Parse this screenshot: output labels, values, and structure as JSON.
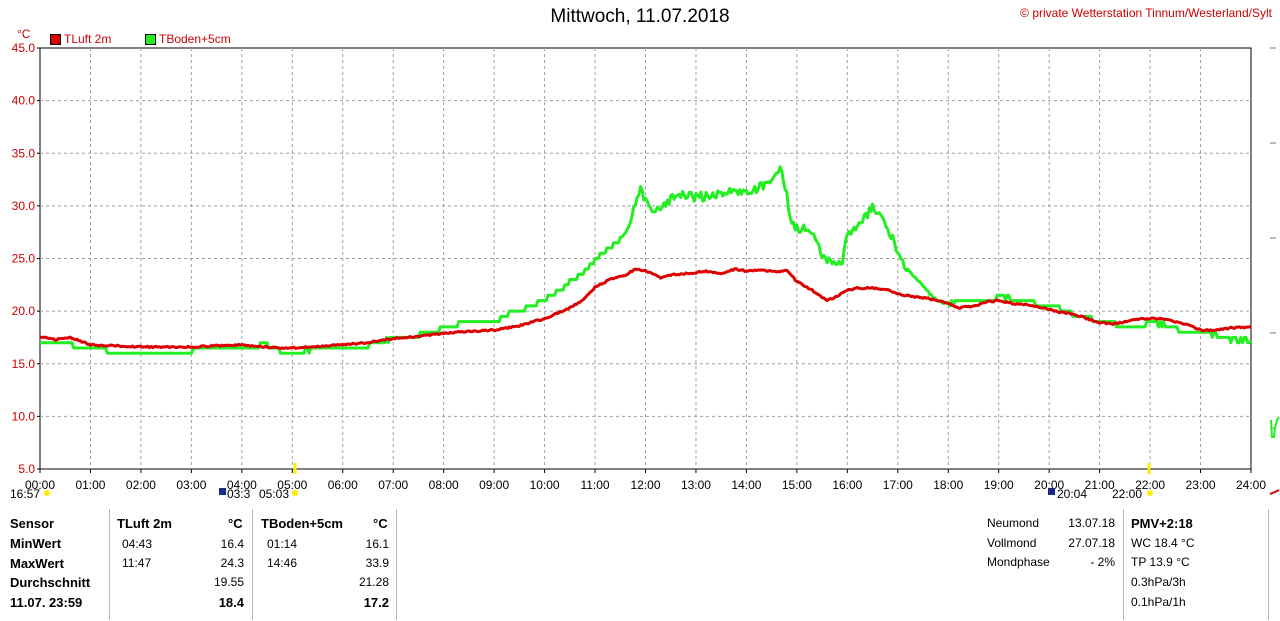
{
  "header": {
    "title": "Mittwoch, 11.07.2018",
    "copyright": "© private Wetterstation Tinnum/Westerland/Sylt",
    "unit": "°C"
  },
  "colors": {
    "tluft": "#dd0000",
    "tboden": "#22ee22",
    "axis_text": "#cc0000",
    "grid": "#a0a0a0"
  },
  "chart_data": {
    "type": "line",
    "ylabel": "°C",
    "ylim": [
      5,
      45
    ],
    "xlim": [
      "00:00",
      "24:00"
    ],
    "y_ticks": [
      "5.0",
      "10.0",
      "15.0",
      "20.0",
      "25.0",
      "30.0",
      "35.0",
      "40.0",
      "45.0"
    ],
    "x_ticks": [
      "00:00",
      "01:00",
      "02:00",
      "03:00",
      "04:00",
      "05:00",
      "06:00",
      "07:00",
      "08:00",
      "09:00",
      "10:00",
      "11:00",
      "12:00",
      "13:00",
      "14:00",
      "15:00",
      "16:00",
      "17:00",
      "18:00",
      "19:00",
      "20:00",
      "21:00",
      "22:00",
      "23:00",
      "24:00"
    ],
    "grid": true,
    "legend": "top-left",
    "series": [
      {
        "name": "TLuft 2m",
        "color": "#dd0000",
        "x": [
          0,
          0.3,
          0.6,
          1,
          2,
          3,
          4,
          4.7,
          5,
          6,
          6.5,
          7,
          7.5,
          8,
          8.5,
          9,
          9.5,
          10,
          10.5,
          10.8,
          11,
          11.3,
          11.6,
          11.8,
          12,
          12.3,
          12.6,
          12.9,
          13.2,
          13.5,
          13.8,
          14,
          14.3,
          14.6,
          14.8,
          15,
          15.3,
          15.6,
          15.8,
          16,
          16.2,
          16.5,
          16.8,
          17,
          17.3,
          17.6,
          17.9,
          18.2,
          18.5,
          18.8,
          19,
          19.3,
          19.6,
          19.9,
          20.2,
          20.5,
          20.8,
          21,
          21.3,
          21.6,
          21.9,
          22.2,
          22.5,
          22.8,
          23,
          23.3,
          23.6,
          24
        ],
        "y": [
          17.6,
          17.3,
          17.5,
          16.8,
          16.6,
          16.6,
          16.8,
          16.5,
          16.5,
          16.8,
          17.0,
          17.4,
          17.6,
          17.9,
          18.1,
          18.2,
          18.6,
          19.3,
          20.3,
          21.2,
          22.3,
          23.0,
          23.4,
          24.0,
          23.8,
          23.2,
          23.5,
          23.6,
          23.8,
          23.6,
          24.0,
          23.8,
          23.9,
          23.7,
          23.9,
          22.8,
          22.0,
          21.0,
          21.4,
          22.0,
          22.2,
          22.2,
          22.0,
          21.6,
          21.4,
          21.2,
          20.9,
          20.3,
          20.5,
          20.9,
          21.0,
          20.7,
          20.6,
          20.3,
          19.9,
          19.7,
          19.2,
          18.9,
          18.8,
          19.1,
          19.3,
          19.3,
          19.0,
          18.6,
          18.2,
          18.2,
          18.4,
          18.5
        ]
      },
      {
        "name": "TBoden+5cm",
        "color": "#22ee22",
        "x": [
          0,
          0.3,
          0.6,
          1,
          1.5,
          2,
          3,
          3.05,
          4,
          4.5,
          4.8,
          5,
          6,
          6.3,
          6.6,
          7,
          7.5,
          8,
          8.5,
          9,
          9.3,
          9.6,
          10,
          10.3,
          10.6,
          10.8,
          11,
          11.3,
          11.6,
          11.7,
          11.9,
          12.1,
          12.3,
          12.5,
          12.7,
          13,
          13.3,
          13.6,
          13.9,
          14.2,
          14.5,
          14.7,
          14.9,
          15.1,
          15.3,
          15.5,
          15.7,
          15.9,
          16,
          16.3,
          16.5,
          16.7,
          16.9,
          17.1,
          17.3,
          17.5,
          17.7,
          17.9,
          18.1,
          18.4,
          18.7,
          19,
          19.3,
          19.6,
          19.9,
          20.2,
          20.5,
          21,
          21.3,
          21.6,
          22,
          22.3,
          22.6,
          23,
          23.3,
          23.6,
          24
        ],
        "y": [
          17.0,
          17.0,
          16.8,
          16.6,
          16.1,
          16.1,
          16.1,
          16.6,
          16.6,
          16.8,
          16.1,
          16.1,
          16.6,
          16.6,
          16.8,
          17.4,
          17.7,
          18.4,
          18.9,
          18.9,
          19.8,
          20.3,
          21.0,
          22.1,
          23.0,
          23.7,
          24.9,
          26.0,
          27.4,
          28.4,
          31.8,
          29.4,
          29.9,
          30.7,
          31.1,
          30.8,
          31.0,
          31.3,
          31.3,
          31.5,
          32.6,
          33.5,
          28.3,
          27.8,
          27.5,
          25.2,
          24.5,
          24.8,
          27.1,
          28.7,
          29.8,
          28.9,
          26.8,
          24.6,
          23.4,
          22.4,
          21.3,
          20.8,
          20.8,
          21.0,
          20.9,
          21.3,
          21.2,
          20.9,
          20.5,
          20.3,
          19.6,
          19.1,
          18.8,
          18.3,
          18.9,
          18.7,
          18.2,
          18.0,
          17.7,
          17.3,
          17.2
        ]
      }
    ]
  },
  "time_markers": [
    "16:57",
    "03:3",
    "05:03",
    "20:04",
    "22:00"
  ],
  "stats": {
    "row_labels": [
      "Sensor",
      "MinWert",
      "MaxWert",
      "Durchschnitt",
      "11.07. 23:59"
    ],
    "tluft": {
      "header": "TLuft 2m",
      "unit": "°C",
      "min_time": "04:43",
      "min": "16.4",
      "max_time": "11:47",
      "max": "24.3",
      "avg": "19.55",
      "last": "18.4"
    },
    "tboden": {
      "header": "TBoden+5cm",
      "unit": "°C",
      "min_time": "01:14",
      "min": "16.1",
      "max_time": "14:46",
      "max": "33.9",
      "avg": "21.28",
      "last": "17.2"
    }
  },
  "moon": {
    "labels": [
      "Neumond",
      "Vollmond",
      "Mondphase"
    ],
    "values": [
      "13.07.18",
      "27.07.18",
      "- 2%"
    ]
  },
  "extra": {
    "title": "PMV+2:18",
    "lines": [
      "WC 18.4 °C",
      "TP 13.9 °C",
      "0.3hPa/3h",
      "0.1hPa/1h"
    ]
  }
}
